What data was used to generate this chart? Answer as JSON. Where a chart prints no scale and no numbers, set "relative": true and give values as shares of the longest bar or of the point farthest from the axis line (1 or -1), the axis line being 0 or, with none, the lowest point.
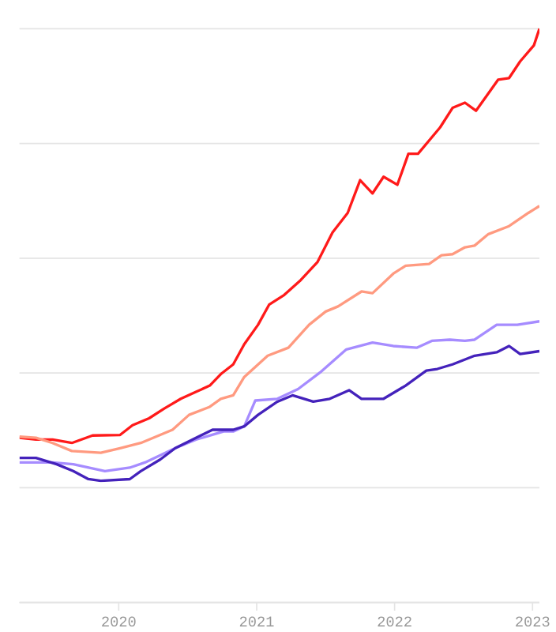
{
  "chart_data": {
    "type": "line",
    "relative": true,
    "grid": "y",
    "xlim": [
      2019.28,
      2023.05
    ],
    "xticks": [
      2020,
      2021,
      2022,
      2023
    ],
    "series": [
      {
        "color": "#ff1a1a",
        "x": [
          2019.28,
          2019.4,
          2019.52,
          2019.66,
          2019.81,
          2020.01,
          2020.1,
          2020.22,
          2020.33,
          2020.45,
          2020.56,
          2020.66,
          2020.74,
          2020.83,
          2020.91,
          2021.01,
          2021.09,
          2021.2,
          2021.32,
          2021.44,
          2021.55,
          2021.66,
          2021.75,
          2021.84,
          2021.92,
          2022.02,
          2022.1,
          2022.17,
          2022.33,
          2022.42,
          2022.51,
          2022.59,
          2022.75,
          2022.83,
          2022.91,
          2023.01,
          2023.05
        ],
        "values": [
          0.287,
          0.284,
          0.284,
          0.278,
          0.291,
          0.292,
          0.309,
          0.321,
          0.338,
          0.355,
          0.367,
          0.378,
          0.398,
          0.415,
          0.45,
          0.484,
          0.519,
          0.536,
          0.562,
          0.593,
          0.645,
          0.679,
          0.736,
          0.713,
          0.742,
          0.728,
          0.782,
          0.782,
          0.828,
          0.862,
          0.871,
          0.857,
          0.911,
          0.914,
          0.943,
          0.971,
          1.0
        ]
      },
      {
        "color": "#ff9a80",
        "x": [
          2019.28,
          2019.4,
          2019.52,
          2019.66,
          2019.87,
          2020.01,
          2020.16,
          2020.27,
          2020.39,
          2020.51,
          2020.66,
          2020.74,
          2020.83,
          2020.91,
          2021.08,
          2021.23,
          2021.38,
          2021.5,
          2021.59,
          2021.76,
          2021.84,
          2021.99,
          2022.08,
          2022.25,
          2022.34,
          2022.42,
          2022.51,
          2022.58,
          2022.68,
          2022.83,
          2022.97,
          2023.01,
          2023.05
        ],
        "values": [
          0.289,
          0.287,
          0.278,
          0.264,
          0.261,
          0.269,
          0.278,
          0.289,
          0.301,
          0.327,
          0.341,
          0.355,
          0.361,
          0.393,
          0.43,
          0.444,
          0.484,
          0.507,
          0.516,
          0.542,
          0.539,
          0.573,
          0.587,
          0.59,
          0.605,
          0.607,
          0.619,
          0.622,
          0.642,
          0.656,
          0.679,
          0.685,
          0.691
        ]
      },
      {
        "color": "#a68cff",
        "x": [
          2019.28,
          2019.52,
          2019.67,
          2019.9,
          2020.08,
          2020.19,
          2020.41,
          2020.56,
          2020.76,
          2020.83,
          2020.91,
          2020.99,
          2021.15,
          2021.3,
          2021.46,
          2021.65,
          2021.84,
          2021.99,
          2022.16,
          2022.27,
          2022.4,
          2022.51,
          2022.58,
          2022.74,
          2022.89,
          2023.05
        ],
        "values": [
          0.244,
          0.244,
          0.241,
          0.229,
          0.235,
          0.244,
          0.269,
          0.284,
          0.298,
          0.298,
          0.307,
          0.352,
          0.355,
          0.372,
          0.401,
          0.441,
          0.453,
          0.447,
          0.444,
          0.456,
          0.458,
          0.456,
          0.458,
          0.484,
          0.484,
          0.49
        ]
      },
      {
        "color": "#4422bb",
        "x": [
          2019.28,
          2019.4,
          2019.55,
          2019.67,
          2019.78,
          2019.87,
          2020.08,
          2020.16,
          2020.3,
          2020.41,
          2020.56,
          2020.68,
          2020.83,
          2020.91,
          2021.01,
          2021.15,
          2021.26,
          2021.41,
          2021.53,
          2021.67,
          2021.76,
          2021.92,
          2022.08,
          2022.23,
          2022.31,
          2022.42,
          2022.58,
          2022.74,
          2022.83,
          2022.91,
          2023.05
        ],
        "values": [
          0.252,
          0.252,
          0.241,
          0.229,
          0.215,
          0.212,
          0.215,
          0.229,
          0.249,
          0.269,
          0.287,
          0.301,
          0.301,
          0.307,
          0.327,
          0.35,
          0.361,
          0.35,
          0.355,
          0.37,
          0.355,
          0.355,
          0.378,
          0.404,
          0.407,
          0.415,
          0.43,
          0.436,
          0.447,
          0.433,
          0.438
        ]
      }
    ]
  }
}
